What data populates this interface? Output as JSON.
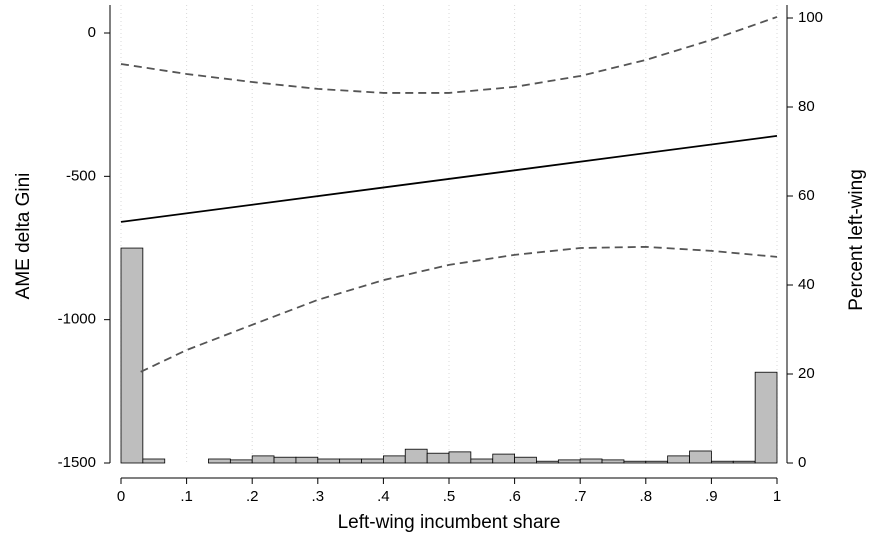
{
  "chart_data": {
    "type": "line",
    "xlabel": "Left-wing incumbent share",
    "ylabel": "AME delta Gini",
    "y2label": "Percent left-wing",
    "xlim": [
      0,
      1
    ],
    "ylim": [
      -1500,
      0
    ],
    "y2lim": [
      0,
      100
    ],
    "xticks": [
      0,
      {
        "value": 0.1,
        "label": ".1"
      },
      {
        "value": 0.2,
        "label": ".2"
      },
      {
        "value": 0.3,
        "label": ".3"
      },
      {
        "value": 0.4,
        "label": ".4"
      },
      {
        "value": 0.5,
        "label": ".5"
      },
      {
        "value": 0.6,
        "label": ".6"
      },
      {
        "value": 0.7,
        "label": ".7"
      },
      {
        "value": 0.8,
        "label": ".8"
      },
      {
        "value": 0.9,
        "label": ".9"
      },
      1
    ],
    "yticks": [
      -1500,
      -1000,
      -500,
      0
    ],
    "y2ticks": [
      0,
      20,
      40,
      60,
      80,
      100
    ],
    "grid": true,
    "series": [
      {
        "color": "#000000",
        "style": "solid",
        "x": [
          0,
          1
        ],
        "values": [
          -659,
          -359
        ]
      },
      {
        "color": "#555555",
        "style": "dashed",
        "x": [
          0,
          0.1,
          0.2,
          0.3,
          0.4,
          0.5,
          0.6,
          0.7,
          0.8,
          0.9,
          1
        ],
        "values": [
          -108,
          -143,
          -171,
          -195,
          -209,
          -209,
          -188,
          -150,
          -94,
          -24,
          56
        ]
      },
      {
        "color": "#555555",
        "style": "dashed",
        "x": [
          0.03,
          0.1,
          0.2,
          0.3,
          0.4,
          0.5,
          0.6,
          0.7,
          0.8,
          0.9,
          1
        ],
        "values": [
          -1182,
          -1106,
          -1018,
          -931,
          -862,
          -809,
          -774,
          -750,
          -746,
          -760,
          -781
        ]
      }
    ],
    "histogram": {
      "type": "histogram",
      "axis": "y2",
      "color": "#bebebe",
      "bins": [
        0,
        0.0333,
        0.0667,
        0.1,
        0.1333,
        0.1667,
        0.2,
        0.2333,
        0.2667,
        0.3,
        0.3333,
        0.3667,
        0.4,
        0.4333,
        0.4667,
        0.5,
        0.5333,
        0.5667,
        0.6,
        0.6333,
        0.6667,
        0.7,
        0.7333,
        0.7667,
        0.8,
        0.8333,
        0.8667,
        0.9,
        0.9333,
        0.9667,
        1
      ],
      "counts": [
        48.3,
        0.9,
        0,
        0,
        0.9,
        0.7,
        1.6,
        1.3,
        1.3,
        0.9,
        0.9,
        0.9,
        1.6,
        3.1,
        2.2,
        2.5,
        0.9,
        2.0,
        1.3,
        0.4,
        0.7,
        0.9,
        0.7,
        0.4,
        0.4,
        1.6,
        2.7,
        0.4,
        0.4,
        20.4
      ]
    }
  }
}
